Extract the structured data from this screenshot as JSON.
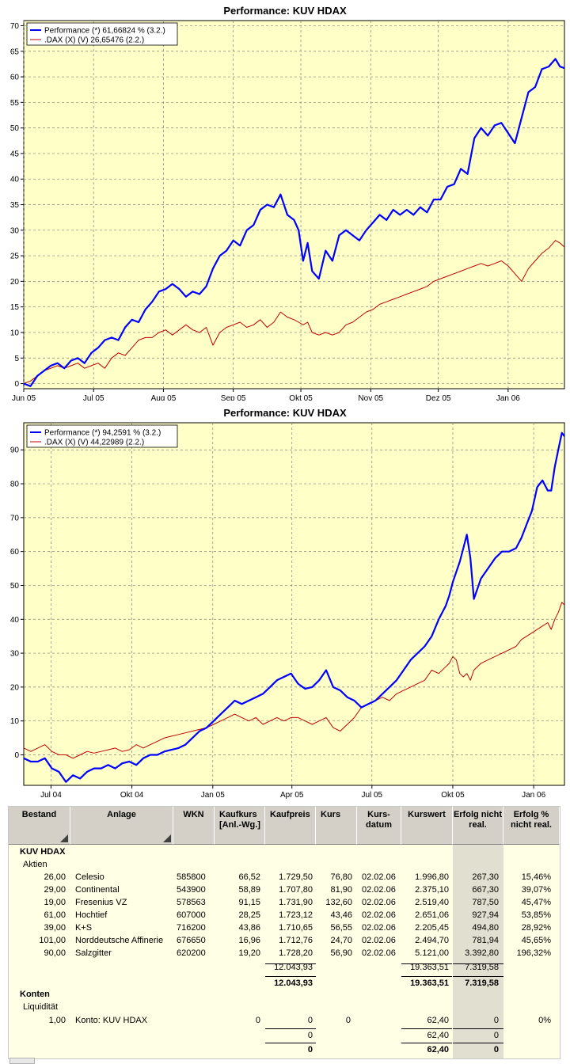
{
  "chart_data": [
    {
      "type": "line",
      "title": "Performance: KUV HDAX",
      "ylim": [
        -1,
        71
      ],
      "yticks": [
        0,
        5,
        10,
        15,
        20,
        25,
        30,
        35,
        40,
        45,
        50,
        55,
        60,
        65,
        70
      ],
      "xlim": [
        0,
        240
      ],
      "xticks": [
        {
          "t": 0,
          "label": "Jun 05"
        },
        {
          "t": 31,
          "label": "Jul 05"
        },
        {
          "t": 62,
          "label": "Aug 05"
        },
        {
          "t": 93,
          "label": "Sep 05"
        },
        {
          "t": 123,
          "label": "Okt 05"
        },
        {
          "t": 154,
          "label": "Nov 05"
        },
        {
          "t": 184,
          "label": "Dez 05"
        },
        {
          "t": 215,
          "label": "Jan 06"
        }
      ],
      "grid": true,
      "legend_position": "top-left",
      "background": "#ffffc8",
      "series": [
        {
          "name": "Performance (*) 61,66824 % (3.2.)",
          "color": "#0000ff",
          "width": 2.2,
          "x": [
            0,
            3,
            6,
            9,
            12,
            15,
            18,
            21,
            24,
            27,
            30,
            33,
            36,
            39,
            42,
            45,
            48,
            51,
            54,
            57,
            60,
            63,
            66,
            69,
            72,
            75,
            78,
            81,
            84,
            87,
            90,
            93,
            96,
            99,
            102,
            105,
            108,
            111,
            114,
            117,
            120,
            122,
            124,
            126,
            128,
            131,
            134,
            137,
            140,
            143,
            146,
            149,
            152,
            155,
            158,
            161,
            164,
            167,
            170,
            173,
            176,
            179,
            182,
            185,
            188,
            191,
            194,
            197,
            200,
            203,
            206,
            209,
            212,
            215,
            218,
            221,
            224,
            227,
            230,
            233,
            236,
            238,
            240
          ],
          "y": [
            0,
            -0.5,
            1.5,
            2.5,
            3.5,
            4,
            3,
            4.5,
            5,
            4,
            6,
            7,
            8.5,
            9,
            8.5,
            11,
            12.5,
            12,
            14.5,
            16,
            18,
            18.5,
            19.5,
            18.5,
            17,
            18,
            17.5,
            19,
            22.5,
            25,
            26,
            28,
            27,
            30,
            31,
            34,
            35,
            34.5,
            37,
            33,
            32,
            30,
            24,
            27.5,
            22,
            20.5,
            26,
            24,
            29,
            30,
            29,
            28,
            30,
            31.5,
            33,
            32,
            34,
            33,
            34,
            33,
            34.5,
            33.5,
            36,
            36,
            38.5,
            39,
            42,
            41,
            48,
            50,
            48.5,
            50.5,
            51,
            49,
            47,
            52,
            57,
            58,
            61.5,
            62,
            63.5,
            62,
            61.7
          ]
        },
        {
          "name": ".DAX (X) (V) 26,65476 (2.2.)",
          "color": "#c00000",
          "width": 1,
          "x": [
            0,
            3,
            6,
            9,
            12,
            15,
            18,
            21,
            24,
            27,
            30,
            33,
            36,
            39,
            42,
            45,
            48,
            51,
            54,
            57,
            60,
            63,
            66,
            69,
            72,
            75,
            78,
            81,
            84,
            87,
            90,
            93,
            96,
            99,
            102,
            105,
            108,
            111,
            114,
            117,
            120,
            122,
            124,
            126,
            128,
            131,
            134,
            137,
            140,
            143,
            146,
            149,
            152,
            155,
            158,
            161,
            164,
            167,
            170,
            173,
            176,
            179,
            182,
            185,
            188,
            191,
            194,
            197,
            200,
            203,
            206,
            209,
            212,
            215,
            218,
            221,
            224,
            227,
            230,
            233,
            236,
            238,
            240
          ],
          "y": [
            0,
            0.5,
            1.5,
            2.5,
            3,
            3.5,
            3,
            3.5,
            4,
            3,
            3.5,
            4,
            3,
            5,
            6,
            5.5,
            7,
            8.5,
            9,
            9,
            10,
            10.5,
            9.5,
            10.5,
            11.5,
            10.5,
            10,
            11,
            7.5,
            10,
            11,
            11.5,
            12,
            11,
            11.5,
            12.5,
            11,
            12,
            14,
            13,
            12.5,
            12,
            11.5,
            12,
            10,
            9.5,
            10,
            9.5,
            10,
            11.5,
            12,
            13,
            14,
            14.5,
            15.5,
            16,
            16.5,
            17,
            17.5,
            18,
            18.5,
            19,
            20,
            20.5,
            21,
            21.5,
            22,
            22.5,
            23,
            23.5,
            23,
            23.5,
            24,
            23,
            21.5,
            20,
            22.5,
            24,
            25.5,
            26.5,
            28,
            27.5,
            26.7
          ]
        }
      ]
    },
    {
      "type": "line",
      "title": "Performance: KUV HDAX",
      "ylim": [
        -9,
        98
      ],
      "yticks": [
        0,
        10,
        20,
        30,
        40,
        50,
        60,
        70,
        80,
        90
      ],
      "xlim": [
        0,
        615
      ],
      "xticks": [
        {
          "t": 31,
          "label": "Jul 04"
        },
        {
          "t": 123,
          "label": "Okt 04"
        },
        {
          "t": 215,
          "label": "Jan 05"
        },
        {
          "t": 305,
          "label": "Apr 05"
        },
        {
          "t": 396,
          "label": "Jul 05"
        },
        {
          "t": 488,
          "label": "Okt 05"
        },
        {
          "t": 580,
          "label": "Jan 06"
        }
      ],
      "grid": true,
      "legend_position": "top-left",
      "background": "#ffffc8",
      "series": [
        {
          "name": "Performance (*) 94,2591 % (3.2.)",
          "color": "#0000ff",
          "width": 2.2,
          "x": [
            0,
            8,
            16,
            24,
            32,
            40,
            48,
            56,
            64,
            72,
            80,
            88,
            96,
            104,
            112,
            120,
            128,
            136,
            144,
            152,
            160,
            168,
            176,
            184,
            192,
            200,
            208,
            216,
            224,
            232,
            240,
            248,
            256,
            264,
            272,
            280,
            288,
            296,
            304,
            312,
            320,
            328,
            336,
            344,
            352,
            360,
            368,
            376,
            384,
            392,
            400,
            408,
            416,
            424,
            432,
            440,
            448,
            456,
            464,
            472,
            480,
            484,
            488,
            492,
            496,
            500,
            504,
            508,
            512,
            520,
            528,
            536,
            544,
            552,
            560,
            566,
            572,
            578,
            584,
            590,
            596,
            600,
            604,
            608,
            612,
            615
          ],
          "y": [
            -1,
            -2,
            -2,
            -1,
            -4,
            -5,
            -8,
            -6,
            -7,
            -5,
            -4,
            -4,
            -3,
            -4,
            -2.5,
            -2,
            -3,
            -1,
            0,
            0,
            1,
            1.5,
            2,
            3,
            5,
            7,
            8,
            10,
            12,
            14,
            16,
            15,
            16,
            17,
            18,
            20,
            22,
            23,
            24,
            21,
            19.5,
            20,
            22,
            25,
            20,
            19,
            17,
            16,
            14,
            15,
            16,
            18,
            20,
            22,
            25,
            28,
            30,
            32,
            35,
            40,
            44,
            47,
            51,
            54,
            57,
            61,
            65,
            58,
            46,
            52,
            55,
            58,
            60,
            60,
            61,
            64,
            68,
            72,
            79,
            81,
            78,
            78,
            85,
            90,
            95,
            94
          ]
        },
        {
          "name": ".DAX (X) (V) 44,22989 (2.2.)",
          "color": "#c00000",
          "width": 1,
          "x": [
            0,
            8,
            16,
            24,
            32,
            40,
            48,
            56,
            64,
            72,
            80,
            88,
            96,
            104,
            112,
            120,
            128,
            136,
            144,
            152,
            160,
            168,
            176,
            184,
            192,
            200,
            208,
            216,
            224,
            232,
            240,
            248,
            256,
            264,
            272,
            280,
            288,
            296,
            304,
            312,
            320,
            328,
            336,
            344,
            352,
            360,
            368,
            376,
            384,
            392,
            400,
            408,
            416,
            424,
            432,
            440,
            448,
            456,
            464,
            472,
            480,
            484,
            488,
            492,
            496,
            500,
            504,
            508,
            512,
            520,
            528,
            536,
            544,
            552,
            560,
            566,
            572,
            578,
            584,
            590,
            596,
            600,
            604,
            608,
            612,
            615
          ],
          "y": [
            2,
            1,
            2,
            3,
            1,
            0,
            0,
            -1,
            0,
            1,
            0.5,
            1,
            1.5,
            2,
            1,
            1.5,
            3,
            2,
            3,
            4,
            5,
            5.5,
            6,
            6.5,
            7,
            7.5,
            8,
            9,
            10,
            11,
            12,
            11,
            10,
            11,
            9,
            10,
            11,
            10,
            11,
            11,
            10,
            9,
            10,
            11,
            8,
            7,
            9,
            11,
            14,
            15,
            16,
            17,
            16,
            18,
            19,
            20,
            21,
            22,
            25,
            24,
            26,
            27,
            29,
            28,
            24,
            23,
            24,
            22,
            25,
            27,
            28,
            29,
            30,
            31,
            32,
            34,
            35,
            36,
            37,
            38,
            39,
            37,
            40,
            42,
            45,
            44.2
          ]
        }
      ]
    }
  ],
  "table": {
    "headers": {
      "bestand": "Bestand",
      "anlage": "Anlage",
      "wkn": "WKN",
      "kaufkurs": "Kaufkurs [Anl.-Wg.]",
      "kaufpreis": "Kaufpreis",
      "kurs": "Kurs",
      "kursdatum": "Kurs- datum",
      "kurswert": "Kurswert",
      "erfolg": "Erfolg nicht real.",
      "erfolg_pct": "Erfolg % nicht real."
    },
    "portfolio_name": "KUV HDAX",
    "section_aktien": "Aktien",
    "rows": [
      {
        "bestand": "26,00",
        "anlage": "Celesio",
        "wkn": "585800",
        "kaufkurs": "66,52",
        "kaufpreis": "1.729,50",
        "kurs": "76,80",
        "datum": "02.02.06",
        "kurswert": "1.996,80",
        "erfolg": "267,30",
        "erfolg_pct": "15,46%"
      },
      {
        "bestand": "29,00",
        "anlage": "Continental",
        "wkn": "543900",
        "kaufkurs": "58,89",
        "kaufpreis": "1.707,80",
        "kurs": "81,90",
        "datum": "02.02.06",
        "kurswert": "2.375,10",
        "erfolg": "667,30",
        "erfolg_pct": "39,07%"
      },
      {
        "bestand": "19,00",
        "anlage": "Fresenius VZ",
        "wkn": "578563",
        "kaufkurs": "91,15",
        "kaufpreis": "1.731,90",
        "kurs": "132,60",
        "datum": "02.02.06",
        "kurswert": "2.519,40",
        "erfolg": "787,50",
        "erfolg_pct": "45,47%"
      },
      {
        "bestand": "61,00",
        "anlage": "Hochtief",
        "wkn": "607000",
        "kaufkurs": "28,25",
        "kaufpreis": "1.723,12",
        "kurs": "43,46",
        "datum": "02.02.06",
        "kurswert": "2.651,06",
        "erfolg": "927,94",
        "erfolg_pct": "53,85%"
      },
      {
        "bestand": "39,00",
        "anlage": "K+S",
        "wkn": "716200",
        "kaufkurs": "43,86",
        "kaufpreis": "1.710,65",
        "kurs": "56,55",
        "datum": "02.02.06",
        "kurswert": "2.205,45",
        "erfolg": "494,80",
        "erfolg_pct": "28,92%"
      },
      {
        "bestand": "101,00",
        "anlage": "Norddeutsche Affinerie",
        "wkn": "676650",
        "kaufkurs": "16,96",
        "kaufpreis": "1.712,76",
        "kurs": "24,70",
        "datum": "02.02.06",
        "kurswert": "2.494,70",
        "erfolg": "781,94",
        "erfolg_pct": "45,65%"
      },
      {
        "bestand": "90,00",
        "anlage": "Salzgitter",
        "wkn": "620200",
        "kaufkurs": "19,20",
        "kaufpreis": "1.728,20",
        "kurs": "56,90",
        "datum": "02.02.06",
        "kurswert": "5.121,00",
        "erfolg": "3.392,80",
        "erfolg_pct": "196,32%"
      }
    ],
    "aktien_subtotal": {
      "kaufpreis": "12.043,93",
      "kurswert": "19.363,51",
      "erfolg": "7.319,58"
    },
    "aktien_total": {
      "kaufpreis": "12.043,93",
      "kurswert": "19.363,51",
      "erfolg": "7.319,58"
    },
    "section_konten": "Konten",
    "section_liquiditaet": "Liquidität",
    "konto_row": {
      "bestand": "1,00",
      "anlage": "Konto: KUV HDAX",
      "kaufkurs": "0",
      "kaufpreis": "0",
      "kurs": "0",
      "kurswert": "62,40",
      "erfolg": "0",
      "erfolg_pct": "0%"
    },
    "konten_subtotal": {
      "kaufpreis": "0",
      "kurswert": "62,40",
      "erfolg": "0"
    },
    "konten_total": {
      "kaufpreis": "0",
      "kurswert": "62,40",
      "erfolg": "0"
    }
  }
}
